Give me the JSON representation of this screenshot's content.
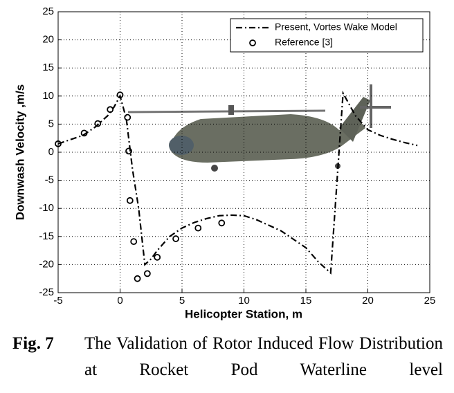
{
  "chart_data": {
    "type": "line",
    "xlabel": "Helicopter Station, m",
    "ylabel": "Downwash Velocity ,m/s",
    "xlim": [
      -5,
      25
    ],
    "xticks": [
      -5,
      0,
      5,
      10,
      15,
      20,
      25
    ],
    "ylim": [
      -25,
      25
    ],
    "yticks": [
      -25,
      -20,
      -15,
      -10,
      -5,
      0,
      5,
      10,
      15,
      20,
      25
    ],
    "grid": true,
    "legend": "upper right",
    "series": [
      {
        "name": "Present, Vortes Wake Model",
        "color": "#000000",
        "style": "dash-dot",
        "x": [
          -5,
          -3,
          -2,
          -1,
          -0.5,
          0,
          0.5,
          1,
          1.5,
          2,
          2.5,
          3,
          4,
          5,
          6,
          7,
          8,
          9,
          10,
          11,
          12,
          13,
          14,
          15,
          16,
          17,
          18,
          19,
          20,
          21,
          22,
          23,
          24
        ],
        "values": [
          1.5,
          3,
          4.5,
          6.5,
          8,
          10,
          6,
          -3,
          -10,
          -20,
          -19,
          -17.5,
          -15,
          -13.5,
          -12.5,
          -11.8,
          -11.3,
          -11.2,
          -11.3,
          -12,
          -13,
          -14,
          -15.5,
          -17,
          -19.5,
          -21.5,
          10.5,
          6.5,
          4,
          3,
          2.3,
          1.7,
          1.2
        ]
      },
      {
        "name": "Reference [3]",
        "color": "#000000",
        "style": "markers",
        "x": [
          -5,
          -2.9,
          -1.8,
          -0.8,
          0,
          0.6,
          0.7,
          0.8,
          1.1,
          1.4,
          2.2,
          3,
          4.5,
          6.3,
          8.2
        ],
        "values": [
          1.5,
          3.4,
          5.1,
          7.6,
          10.2,
          6.2,
          0.2,
          -8.6,
          -15.9,
          -22.5,
          -21.6,
          -18.7,
          -15.4,
          -13.5,
          -12.6
        ]
      }
    ],
    "caption": {
      "label": "Fig. 7",
      "text": "The Validation of Rotor Induced Flow Distribution at Rocket Pod Waterline level"
    }
  }
}
